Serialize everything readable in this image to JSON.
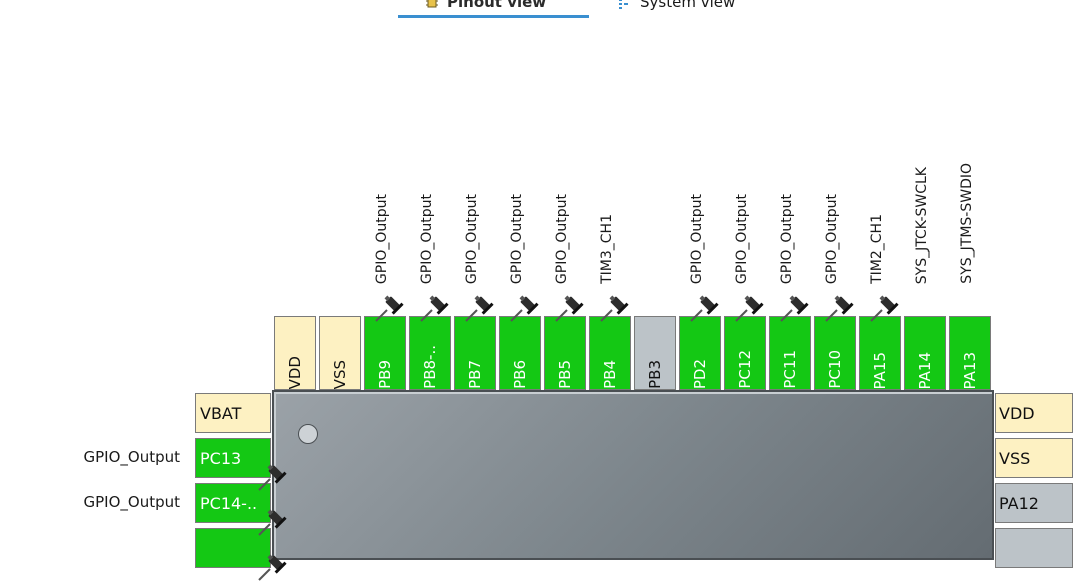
{
  "tabs": [
    {
      "label": "Pinout view",
      "active": true,
      "icon": "chip-icon"
    },
    {
      "label": "System view",
      "active": false,
      "icon": "list-icon"
    }
  ],
  "top_pins": [
    {
      "label": "VDD",
      "color": "yellow",
      "signal": ""
    },
    {
      "label": "VSS",
      "color": "yellow",
      "signal": ""
    },
    {
      "label": "PB9",
      "color": "green",
      "signal": "GPIO_Output",
      "pinned": true
    },
    {
      "label": "PB8-..",
      "color": "green",
      "signal": "GPIO_Output",
      "pinned": true
    },
    {
      "label": "PB7",
      "color": "green",
      "signal": "GPIO_Output",
      "pinned": true
    },
    {
      "label": "PB6",
      "color": "green",
      "signal": "GPIO_Output",
      "pinned": true
    },
    {
      "label": "PB5",
      "color": "green",
      "signal": "GPIO_Output",
      "pinned": true
    },
    {
      "label": "PB4",
      "color": "green",
      "signal": "TIM3_CH1",
      "pinned": true
    },
    {
      "label": "PB3",
      "color": "gray",
      "signal": ""
    },
    {
      "label": "PD2",
      "color": "green",
      "signal": "GPIO_Output",
      "pinned": true
    },
    {
      "label": "PC12",
      "color": "green",
      "signal": "GPIO_Output",
      "pinned": true
    },
    {
      "label": "PC11",
      "color": "green",
      "signal": "GPIO_Output",
      "pinned": true
    },
    {
      "label": "PC10",
      "color": "green",
      "signal": "GPIO_Output",
      "pinned": true
    },
    {
      "label": "PA15",
      "color": "green",
      "signal": "TIM2_CH1",
      "pinned": true
    },
    {
      "label": "PA14",
      "color": "green",
      "signal": "SYS_JTCK-SWCLK"
    },
    {
      "label": "PA13",
      "color": "green",
      "signal": "SYS_JTMS-SWDIO"
    }
  ],
  "left_pins": [
    {
      "label": "VBAT",
      "color": "yellow",
      "signal": ""
    },
    {
      "label": "PC13",
      "color": "green",
      "signal": "GPIO_Output",
      "pinned": true
    },
    {
      "label": "PC14-..",
      "color": "green",
      "signal": "GPIO_Output",
      "pinned": true
    },
    {
      "label": "",
      "color": "green",
      "signal": "",
      "pinned": true
    }
  ],
  "right_pins": [
    {
      "label": "VDD",
      "color": "yellow"
    },
    {
      "label": "VSS",
      "color": "yellow"
    },
    {
      "label": "PA12",
      "color": "gray"
    },
    {
      "label": "",
      "color": "gray"
    }
  ]
}
